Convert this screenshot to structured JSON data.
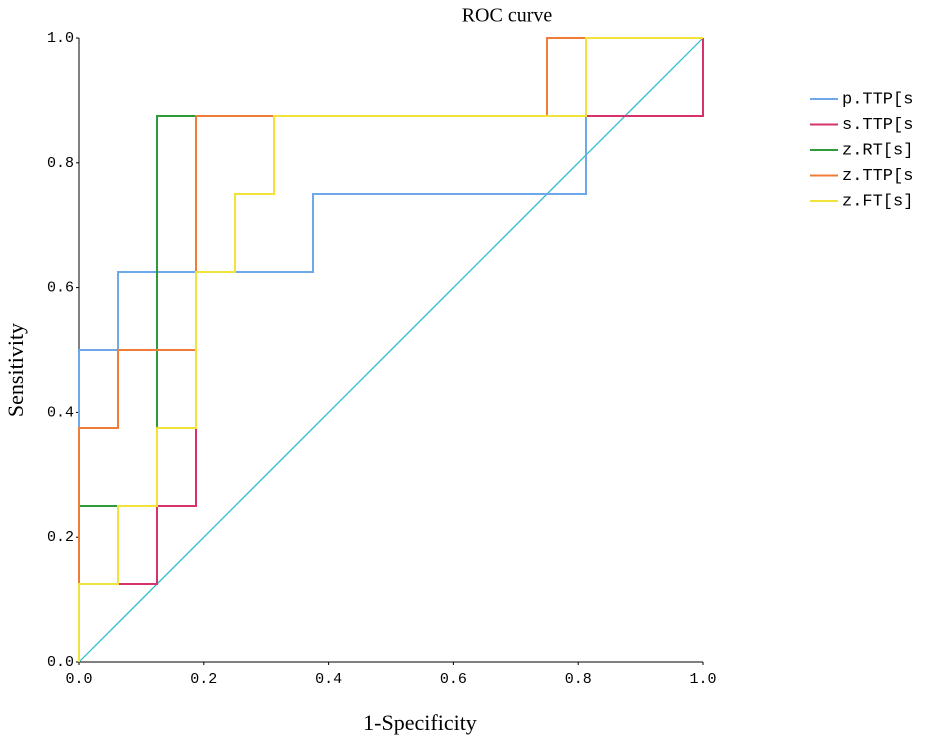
{
  "chart_data": {
    "type": "line",
    "title": "ROC curve",
    "x_label": "1-Specificity",
    "y_label": "Sensitivity",
    "xlim": [
      0,
      1
    ],
    "ylim": [
      0,
      1
    ],
    "xticks": [
      {
        "value": 0,
        "label": "0.0"
      },
      0.2,
      0.4,
      0.6,
      0.8,
      {
        "value": 1,
        "label": "1.0"
      }
    ],
    "yticks": [
      {
        "value": 0,
        "label": "0.0"
      },
      0.2,
      0.4,
      0.6,
      0.8,
      {
        "value": 1,
        "label": "1.0"
      }
    ],
    "series": [
      {
        "name": "p.TTP[s",
        "color": "#6fa8e8",
        "x": [
          0,
          0,
          0.0625,
          0.0625,
          0.375,
          0.375,
          0.8125,
          0.8125,
          1,
          1
        ],
        "y": [
          0,
          0.5,
          0.5,
          0.625,
          0.625,
          0.75,
          0.75,
          0.875,
          0.875,
          1
        ]
      },
      {
        "name": "s.TTP[s",
        "color": "#d6336c",
        "x": [
          0,
          0,
          0.125,
          0.125,
          0.1875,
          0.1875,
          1,
          1
        ],
        "y": [
          0,
          0.125,
          0.125,
          0.25,
          0.25,
          0.875,
          0.875,
          1
        ]
      },
      {
        "name": "z.RT[s]",
        "color": "#2e9a3a",
        "x": [
          0,
          0,
          0.125,
          0.125,
          0.75,
          0.75,
          1
        ],
        "y": [
          0,
          0.25,
          0.25,
          0.875,
          0.875,
          1,
          1
        ]
      },
      {
        "name": "z.TTP[s",
        "color": "#ee7d3a",
        "x": [
          0,
          0,
          0.0625,
          0.0625,
          0.1875,
          0.1875,
          0.75,
          0.75,
          1
        ],
        "y": [
          0,
          0.375,
          0.375,
          0.5,
          0.5,
          0.875,
          0.875,
          1,
          1
        ]
      },
      {
        "name": "z.FT[s]",
        "color": "#f2e33a",
        "x": [
          0,
          0,
          0.0625,
          0.0625,
          0.125,
          0.125,
          0.1875,
          0.1875,
          0.25,
          0.25,
          0.3125,
          0.3125,
          0.8125,
          0.8125,
          1
        ],
        "y": [
          0,
          0.125,
          0.125,
          0.25,
          0.25,
          0.375,
          0.375,
          0.625,
          0.625,
          0.75,
          0.75,
          0.875,
          0.875,
          1,
          1
        ]
      }
    ],
    "reference": {
      "color": "#22b8cc",
      "x": [
        0,
        1
      ],
      "y": [
        0,
        1
      ]
    }
  }
}
